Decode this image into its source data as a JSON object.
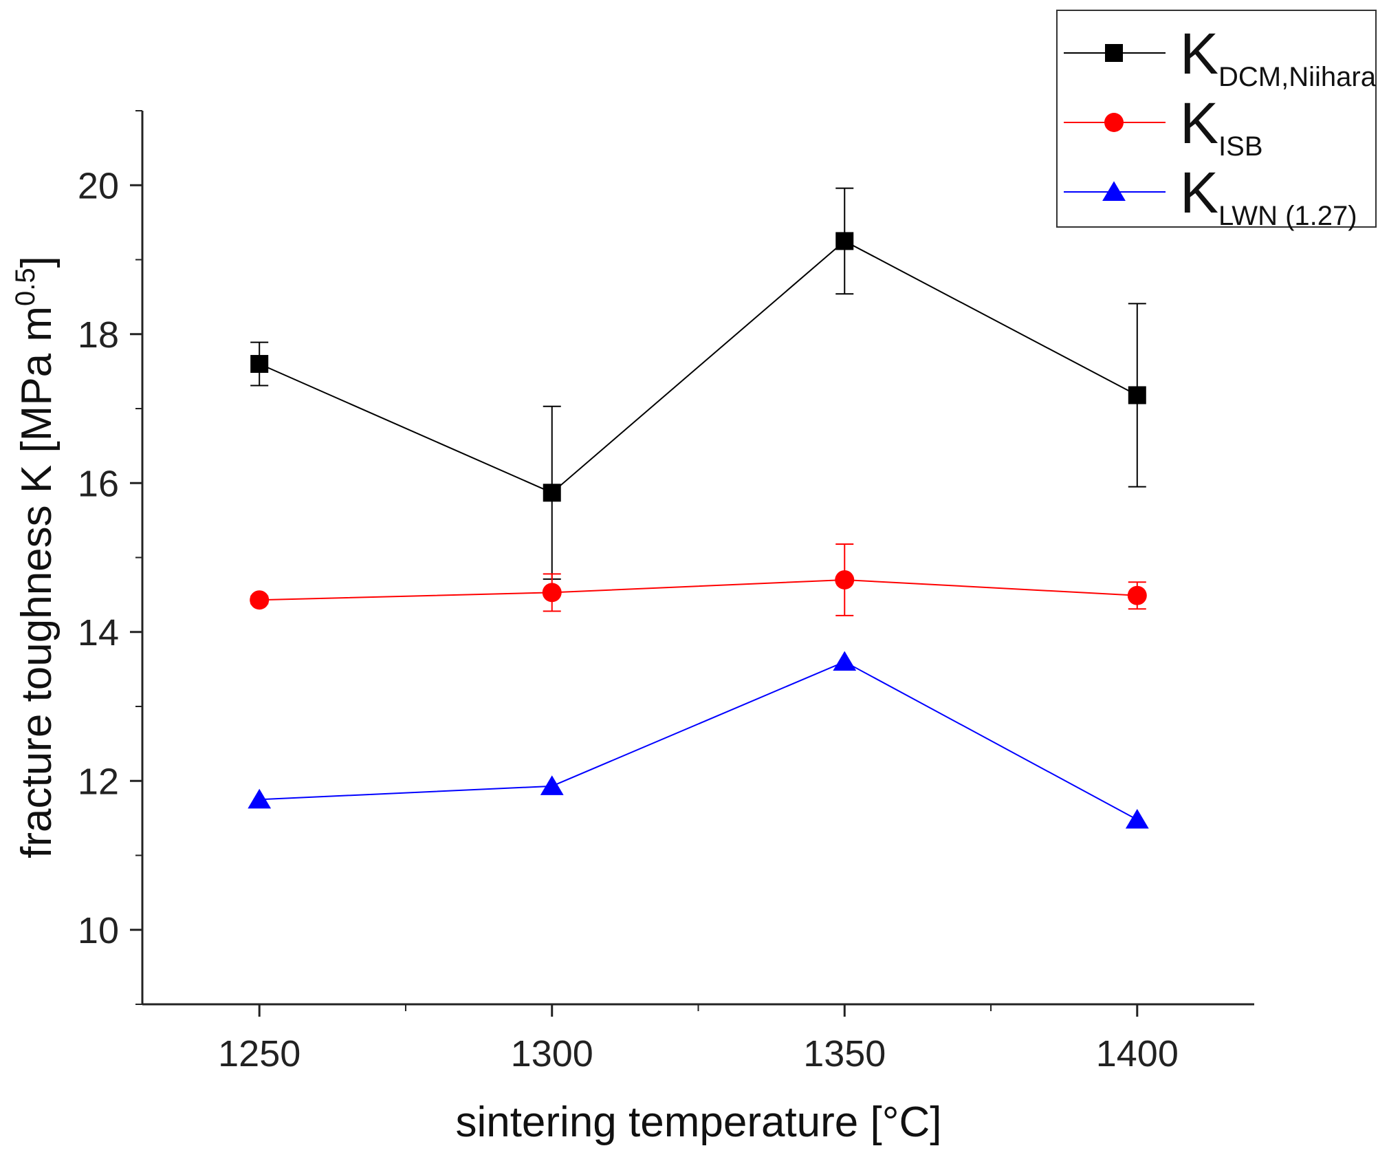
{
  "chart_data": {
    "type": "line",
    "xlabel": "sintering temperature [°C]",
    "ylabel": {
      "text": "fracture toughness K [MPa m",
      "superscript": "0.5",
      "close": "]"
    },
    "xlim": [
      1230,
      1420
    ],
    "ylim": [
      9,
      21
    ],
    "xticks": [
      1250,
      1300,
      1350,
      1400
    ],
    "yticks": [
      10,
      12,
      14,
      16,
      18,
      20
    ],
    "grid": false,
    "legend_position": "top-right",
    "x": [
      1250,
      1300,
      1350,
      1400
    ],
    "series": [
      {
        "name": "K",
        "subscript": "DCM,Niihara",
        "color": "#000000",
        "marker": "square",
        "values": [
          17.6,
          15.87,
          19.25,
          17.18
        ],
        "errors": [
          0.29,
          1.16,
          0.71,
          1.23
        ]
      },
      {
        "name": "K",
        "subscript": "ISB",
        "color": "#ff0000",
        "marker": "circle",
        "values": [
          14.43,
          14.53,
          14.7,
          14.49
        ],
        "errors": [
          0.05,
          0.25,
          0.48,
          0.18
        ]
      },
      {
        "name": "K",
        "subscript": "LWN (1.27)",
        "color": "#0000ff",
        "marker": "triangle",
        "values": [
          11.75,
          11.93,
          13.6,
          11.48
        ],
        "errors": null
      }
    ]
  }
}
